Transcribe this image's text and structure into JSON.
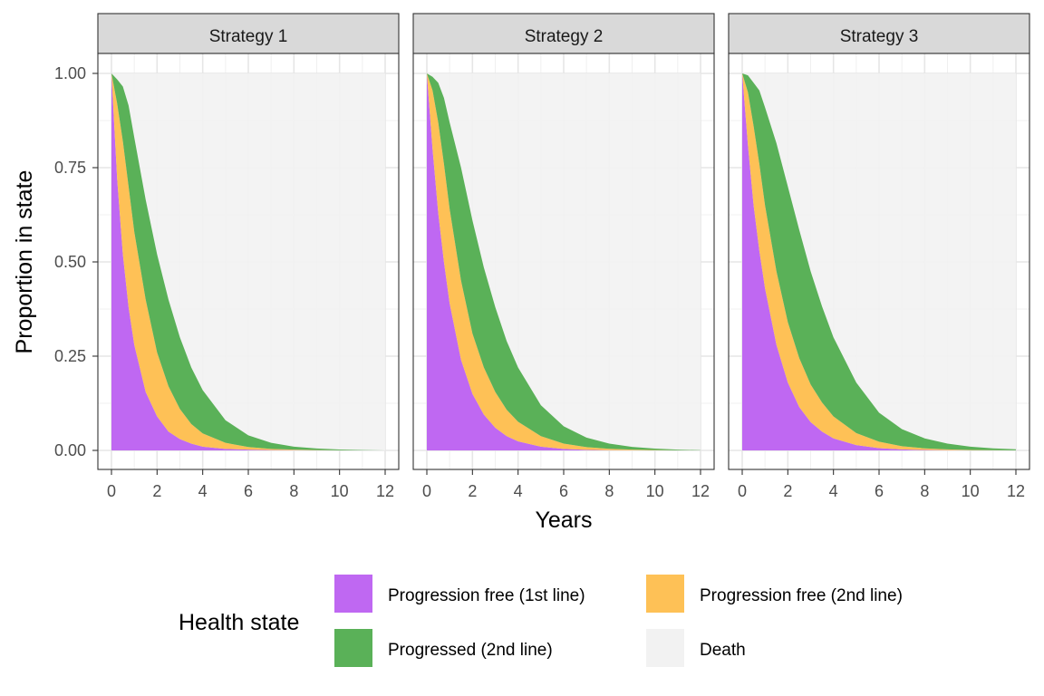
{
  "chart_data": {
    "type": "area",
    "stacked": true,
    "facets": [
      "Strategy 1",
      "Strategy 2",
      "Strategy 3"
    ],
    "xlabel": "Years",
    "ylabel": "Proportion in state",
    "xlim": [
      0,
      12
    ],
    "ylim": [
      0,
      1
    ],
    "x_ticks": [
      0,
      2,
      4,
      6,
      8,
      10,
      12
    ],
    "x_tick_labels": [
      "0",
      "2",
      "4",
      "6",
      "8",
      "10",
      "12"
    ],
    "y_ticks": [
      0,
      0.25,
      0.5,
      0.75,
      1
    ],
    "y_tick_labels": [
      "0.00",
      "0.25",
      "0.50",
      "0.75",
      "1.00"
    ],
    "grid": true,
    "legend": {
      "title": "Health state",
      "position": "bottom",
      "entries": [
        {
          "label": "Progression free (1st line)",
          "color": "#bf68f2"
        },
        {
          "label": "Progression free (2nd line)",
          "color": "#fec156"
        },
        {
          "label": "Progressed (2nd line)",
          "color": "#5ab158"
        },
        {
          "label": "Death",
          "color": "#f2f2f2"
        }
      ]
    },
    "x": [
      0,
      0.25,
      0.5,
      0.75,
      1,
      1.5,
      2,
      2.5,
      3,
      3.5,
      4,
      5,
      6,
      7,
      8,
      9,
      10,
      11,
      12
    ],
    "panels": [
      {
        "strategy": "Strategy 1",
        "series": [
          {
            "name": "Progression free (1st line)",
            "values": [
              1.0,
              0.72,
              0.52,
              0.38,
              0.28,
              0.155,
              0.09,
              0.05,
              0.03,
              0.018,
              0.01,
              0.004,
              0.002,
              0.001,
              0.0005,
              0.0002,
              0.0001,
              0.0,
              0.0
            ]
          },
          {
            "name": "Progression free (2nd line)",
            "values": [
              0.0,
              0.2,
              0.3,
              0.32,
              0.3,
              0.245,
              0.17,
              0.12,
              0.08,
              0.052,
              0.035,
              0.016,
              0.007,
              0.003,
              0.0015,
              0.0006,
              0.0003,
              0.0001,
              0.0
            ]
          },
          {
            "name": "Progressed (2nd line)",
            "values": [
              0.0,
              0.064,
              0.145,
              0.215,
              0.25,
              0.265,
              0.26,
              0.23,
              0.19,
              0.15,
              0.115,
              0.06,
              0.031,
              0.016,
              0.008,
              0.0042,
              0.0021,
              0.0009,
              0.0
            ]
          }
        ]
      },
      {
        "strategy": "Strategy 2",
        "series": [
          {
            "name": "Progression free (1st line)",
            "values": [
              1.0,
              0.8,
              0.63,
              0.5,
              0.39,
              0.24,
              0.15,
              0.095,
              0.06,
              0.038,
              0.024,
              0.01,
              0.004,
              0.0016,
              0.0007,
              0.0003,
              0.0001,
              0.0,
              0.0
            ]
          },
          {
            "name": "Progression free (2nd line)",
            "values": [
              0.0,
              0.155,
              0.24,
              0.26,
              0.25,
              0.21,
              0.16,
              0.125,
              0.095,
              0.07,
              0.052,
              0.028,
              0.014,
              0.007,
              0.0035,
              0.0017,
              0.0008,
              0.0004,
              0.0
            ]
          },
          {
            "name": "Progressed (2nd line)",
            "values": [
              0.0,
              0.036,
              0.105,
              0.175,
              0.23,
              0.3,
              0.3,
              0.265,
              0.225,
              0.182,
              0.144,
              0.082,
              0.046,
              0.0254,
              0.0138,
              0.0074,
              0.0038,
              0.0018,
              0.0007
            ]
          }
        ]
      },
      {
        "strategy": "Strategy 3",
        "series": [
          {
            "name": "Progression free (1st line)",
            "values": [
              1.0,
              0.81,
              0.65,
              0.53,
              0.43,
              0.28,
              0.18,
              0.115,
              0.075,
              0.05,
              0.032,
              0.014,
              0.006,
              0.0026,
              0.0011,
              0.0005,
              0.0002,
              0.0001,
              0.0
            ]
          },
          {
            "name": "Progression free (2nd line)",
            "values": [
              0.0,
              0.14,
              0.21,
              0.23,
              0.22,
              0.195,
              0.16,
              0.13,
              0.1,
              0.077,
              0.058,
              0.032,
              0.017,
              0.0084,
              0.0044,
              0.0022,
              0.0011,
              0.0005,
              0.0002
            ]
          },
          {
            "name": "Progressed (2nd line)",
            "values": [
              0.0,
              0.045,
              0.115,
              0.195,
              0.26,
              0.34,
              0.36,
              0.34,
              0.3,
              0.255,
              0.21,
              0.134,
              0.077,
              0.0455,
              0.0265,
              0.0153,
              0.0087,
              0.0048,
              0.0028
            ]
          }
        ]
      }
    ]
  }
}
